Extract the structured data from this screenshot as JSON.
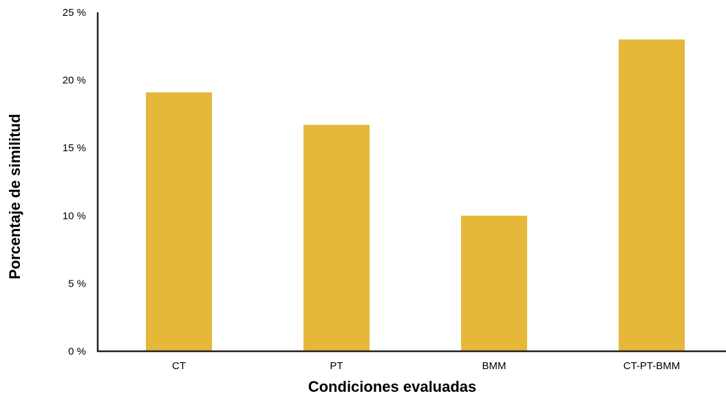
{
  "chart_data": {
    "type": "bar",
    "title": "",
    "xlabel": "Condiciones evaluadas",
    "ylabel": "Porcentaje de similitud",
    "categories": [
      "CT",
      "PT",
      "BMM",
      "CT-PT-BMM"
    ],
    "values": [
      19.1,
      16.7,
      10.0,
      23.0
    ],
    "ylim": [
      0,
      25
    ],
    "yticks": [
      0,
      5,
      10,
      15,
      20,
      25
    ],
    "ytick_labels": [
      "0 %",
      "5 %",
      "10 %",
      "15 %",
      "20 %",
      "25 %"
    ],
    "grid": false,
    "legend": "none",
    "bar_color": "#E5B83A",
    "axis_color": "#231F20"
  }
}
